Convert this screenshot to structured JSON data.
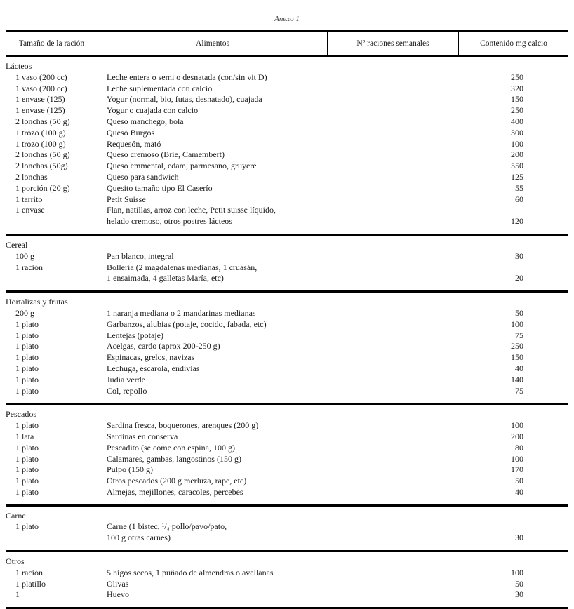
{
  "caption": "Anexo 1",
  "headers": [
    "Tamaño de la ración",
    "Alimentos",
    "Nº raciones semanales",
    "Contenido mg calcio"
  ],
  "sections": [
    {
      "label": "Lácteos",
      "rows": [
        {
          "size": "1 vaso (200 cc)",
          "food": [
            "Leche entera o semi o desnatada (con/sin vit D)"
          ],
          "calcium": "250"
        },
        {
          "size": "1 vaso (200 cc)",
          "food": [
            "Leche suplementada con calcio"
          ],
          "calcium": "320"
        },
        {
          "size": "1 envase (125)",
          "food": [
            "Yogur (normal, bio, futas, desnatado), cuajada"
          ],
          "calcium": "150"
        },
        {
          "size": "1 envase (125)",
          "food": [
            "Yogur o cuajada con calcio"
          ],
          "calcium": "250"
        },
        {
          "size": "2 lonchas (50 g)",
          "food": [
            "Queso manchego, bola"
          ],
          "calcium": "400"
        },
        {
          "size": "1 trozo (100 g)",
          "food": [
            "Queso Burgos"
          ],
          "calcium": "300"
        },
        {
          "size": "1 trozo (100 g)",
          "food": [
            "Requesón, mató"
          ],
          "calcium": "100"
        },
        {
          "size": "2 lonchas (50 g)",
          "food": [
            "Queso cremoso (Brie, Camembert)"
          ],
          "calcium": "200"
        },
        {
          "size": "2 lonchas (50g)",
          "food": [
            "Queso emmental, edam, parmesano, gruyere"
          ],
          "calcium": "550"
        },
        {
          "size": "2 lonchas",
          "food": [
            "Queso para sandwich"
          ],
          "calcium": "125"
        },
        {
          "size": "1 porción (20 g)",
          "food": [
            "Quesito tamaño tipo El Caserío"
          ],
          "calcium": "55"
        },
        {
          "size": "1 tarrito",
          "food": [
            "Petit Suisse"
          ],
          "calcium": "60"
        },
        {
          "size": "1 envase",
          "food": [
            "Flan, natillas, arroz con leche, Petit suisse líquido,",
            "helado cremoso, otros postres lácteos"
          ],
          "calcium": "120"
        }
      ]
    },
    {
      "label": "Cereal",
      "rows": [
        {
          "size": "100 g",
          "food": [
            "Pan blanco, integral"
          ],
          "calcium": "30"
        },
        {
          "size": "1 ración",
          "food": [
            "Bollería (2 magdalenas medianas, 1 cruasán,",
            "1 ensaimada, 4 galletas María, etc)"
          ],
          "calcium": "20"
        }
      ]
    },
    {
      "label": "Hortalizas y frutas",
      "rows": [
        {
          "size": "200 g",
          "food": [
            "1 naranja mediana o 2 mandarinas medianas"
          ],
          "calcium": "50"
        },
        {
          "size": "1 plato",
          "food": [
            "Garbanzos, alubias (potaje, cocido, fabada, etc)"
          ],
          "calcium": "100"
        },
        {
          "size": "1 plato",
          "food": [
            "Lentejas (potaje)"
          ],
          "calcium": "75"
        },
        {
          "size": "1 plato",
          "food": [
            "Acelgas, cardo (aprox 200-250 g)"
          ],
          "calcium": "250"
        },
        {
          "size": "1 plato",
          "food": [
            "Espinacas, grelos, navizas"
          ],
          "calcium": "150"
        },
        {
          "size": "1 plato",
          "food": [
            "Lechuga, escarola, endivias"
          ],
          "calcium": "40"
        },
        {
          "size": "1 plato",
          "food": [
            "Judía verde"
          ],
          "calcium": "140"
        },
        {
          "size": "1 plato",
          "food": [
            "Col, repollo"
          ],
          "calcium": "75"
        }
      ]
    },
    {
      "label": "Pescados",
      "rows": [
        {
          "size": "1 plato",
          "food": [
            "Sardina fresca, boquerones, arenques (200 g)"
          ],
          "calcium": "100"
        },
        {
          "size": "1 lata",
          "food": [
            "Sardinas en conserva"
          ],
          "calcium": "200"
        },
        {
          "size": "1 plato",
          "food": [
            "Pescadito (se come con espina, 100 g)"
          ],
          "calcium": "80"
        },
        {
          "size": "1 plato",
          "food": [
            "Calamares, gambas, langostinos (150 g)"
          ],
          "calcium": "100"
        },
        {
          "size": "1 plato",
          "food": [
            "Pulpo (150 g)"
          ],
          "calcium": "170"
        },
        {
          "size": "1 plato",
          "food": [
            "Otros pescados (200 g merluza, rape, etc)"
          ],
          "calcium": "50"
        },
        {
          "size": "1 plato",
          "food": [
            "Almejas, mejillones, caracoles, percebes"
          ],
          "calcium": "40"
        }
      ]
    },
    {
      "label": "Carne",
      "rows": [
        {
          "size": "1 plato",
          "food": [
            "Carne (1 bistec, ¹/₄ pollo/pavo/pato,",
            "100 g otras carnes)"
          ],
          "calcium": "30"
        }
      ]
    },
    {
      "label": "Otros",
      "rows": [
        {
          "size": "1 ración",
          "food": [
            "5 higos secos, 1 puñado de almendras o avellanas"
          ],
          "calcium": "100"
        },
        {
          "size": "1 platillo",
          "food": [
            "Olivas"
          ],
          "calcium": "50"
        },
        {
          "size": "1",
          "food": [
            "Huevo"
          ],
          "calcium": "30"
        }
      ]
    }
  ]
}
